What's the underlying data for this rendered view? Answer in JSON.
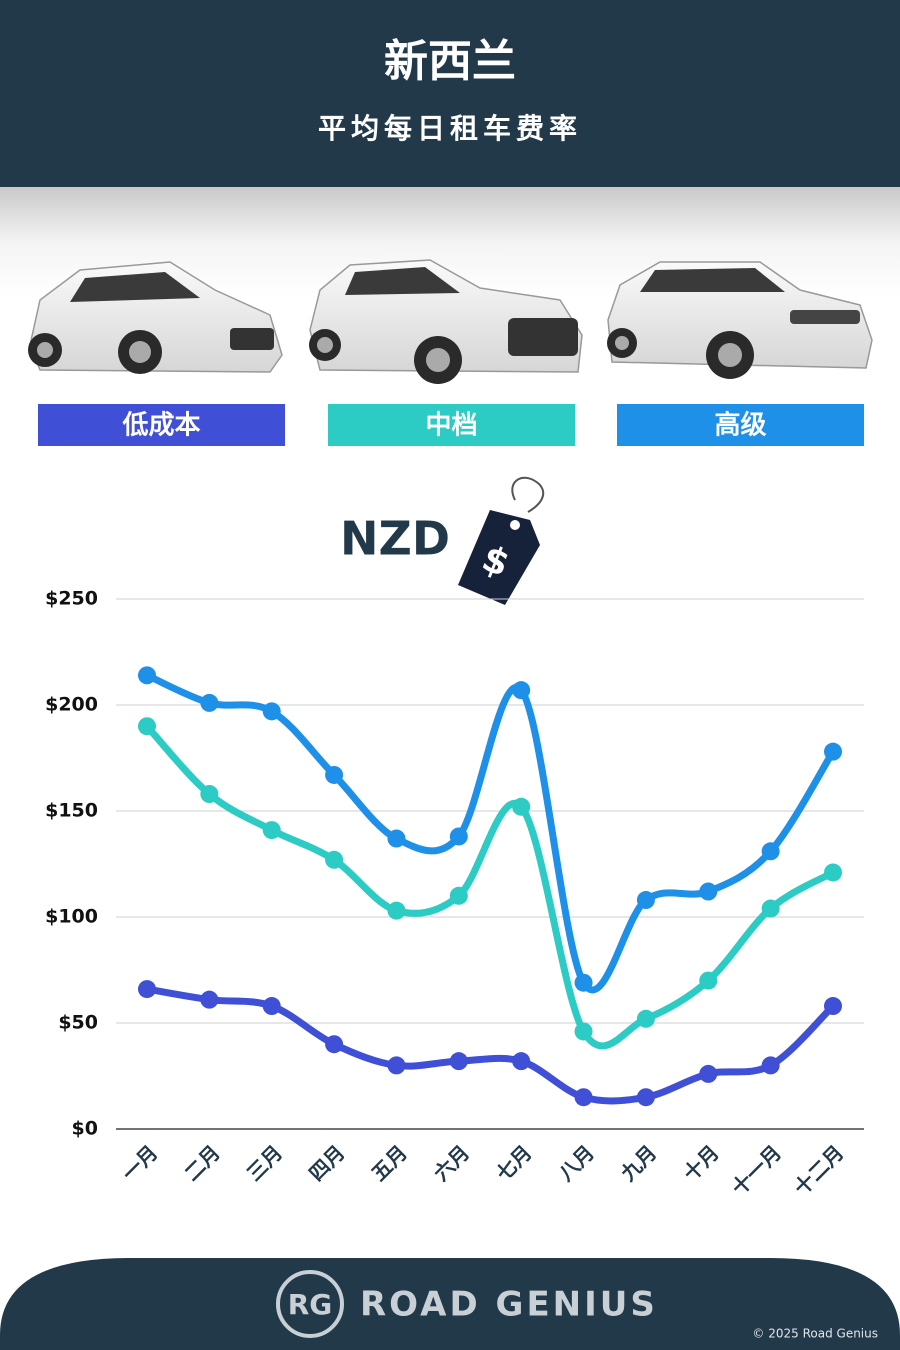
{
  "chart_data": {
    "type": "line",
    "title": "新西兰",
    "subtitle": "平均每日租车费率",
    "unit_label": "NZD",
    "tag_symbol": "$",
    "categories": [
      "一月",
      "二月",
      "三月",
      "四月",
      "五月",
      "六月",
      "七月",
      "八月",
      "九月",
      "十月",
      "十一月",
      "十二月"
    ],
    "series": [
      {
        "name": "低成本",
        "color": "#3f4fd6",
        "values": [
          66,
          61,
          58,
          40,
          30,
          32,
          32,
          15,
          15,
          26,
          30,
          58
        ]
      },
      {
        "name": "中档",
        "color": "#2ccbc4",
        "values": [
          190,
          158,
          141,
          127,
          103,
          110,
          152,
          46,
          52,
          70,
          104,
          121
        ]
      },
      {
        "name": "高级",
        "color": "#1e90e8",
        "values": [
          214,
          201,
          197,
          167,
          137,
          138,
          207,
          69,
          108,
          112,
          131,
          178
        ]
      }
    ],
    "ylim": [
      0,
      250
    ],
    "yticks": [
      {
        "value": 0,
        "label": "$0"
      },
      {
        "value": 50,
        "label": "$50"
      },
      {
        "value": 100,
        "label": "$100"
      },
      {
        "value": 150,
        "label": "$150"
      },
      {
        "value": 200,
        "label": "$200"
      },
      {
        "value": 250,
        "label": "$250"
      }
    ],
    "grid": true
  },
  "footer": {
    "logo": "RG",
    "brand": "ROAD GENIUS",
    "copyright": "© 2025 Road Genius"
  }
}
